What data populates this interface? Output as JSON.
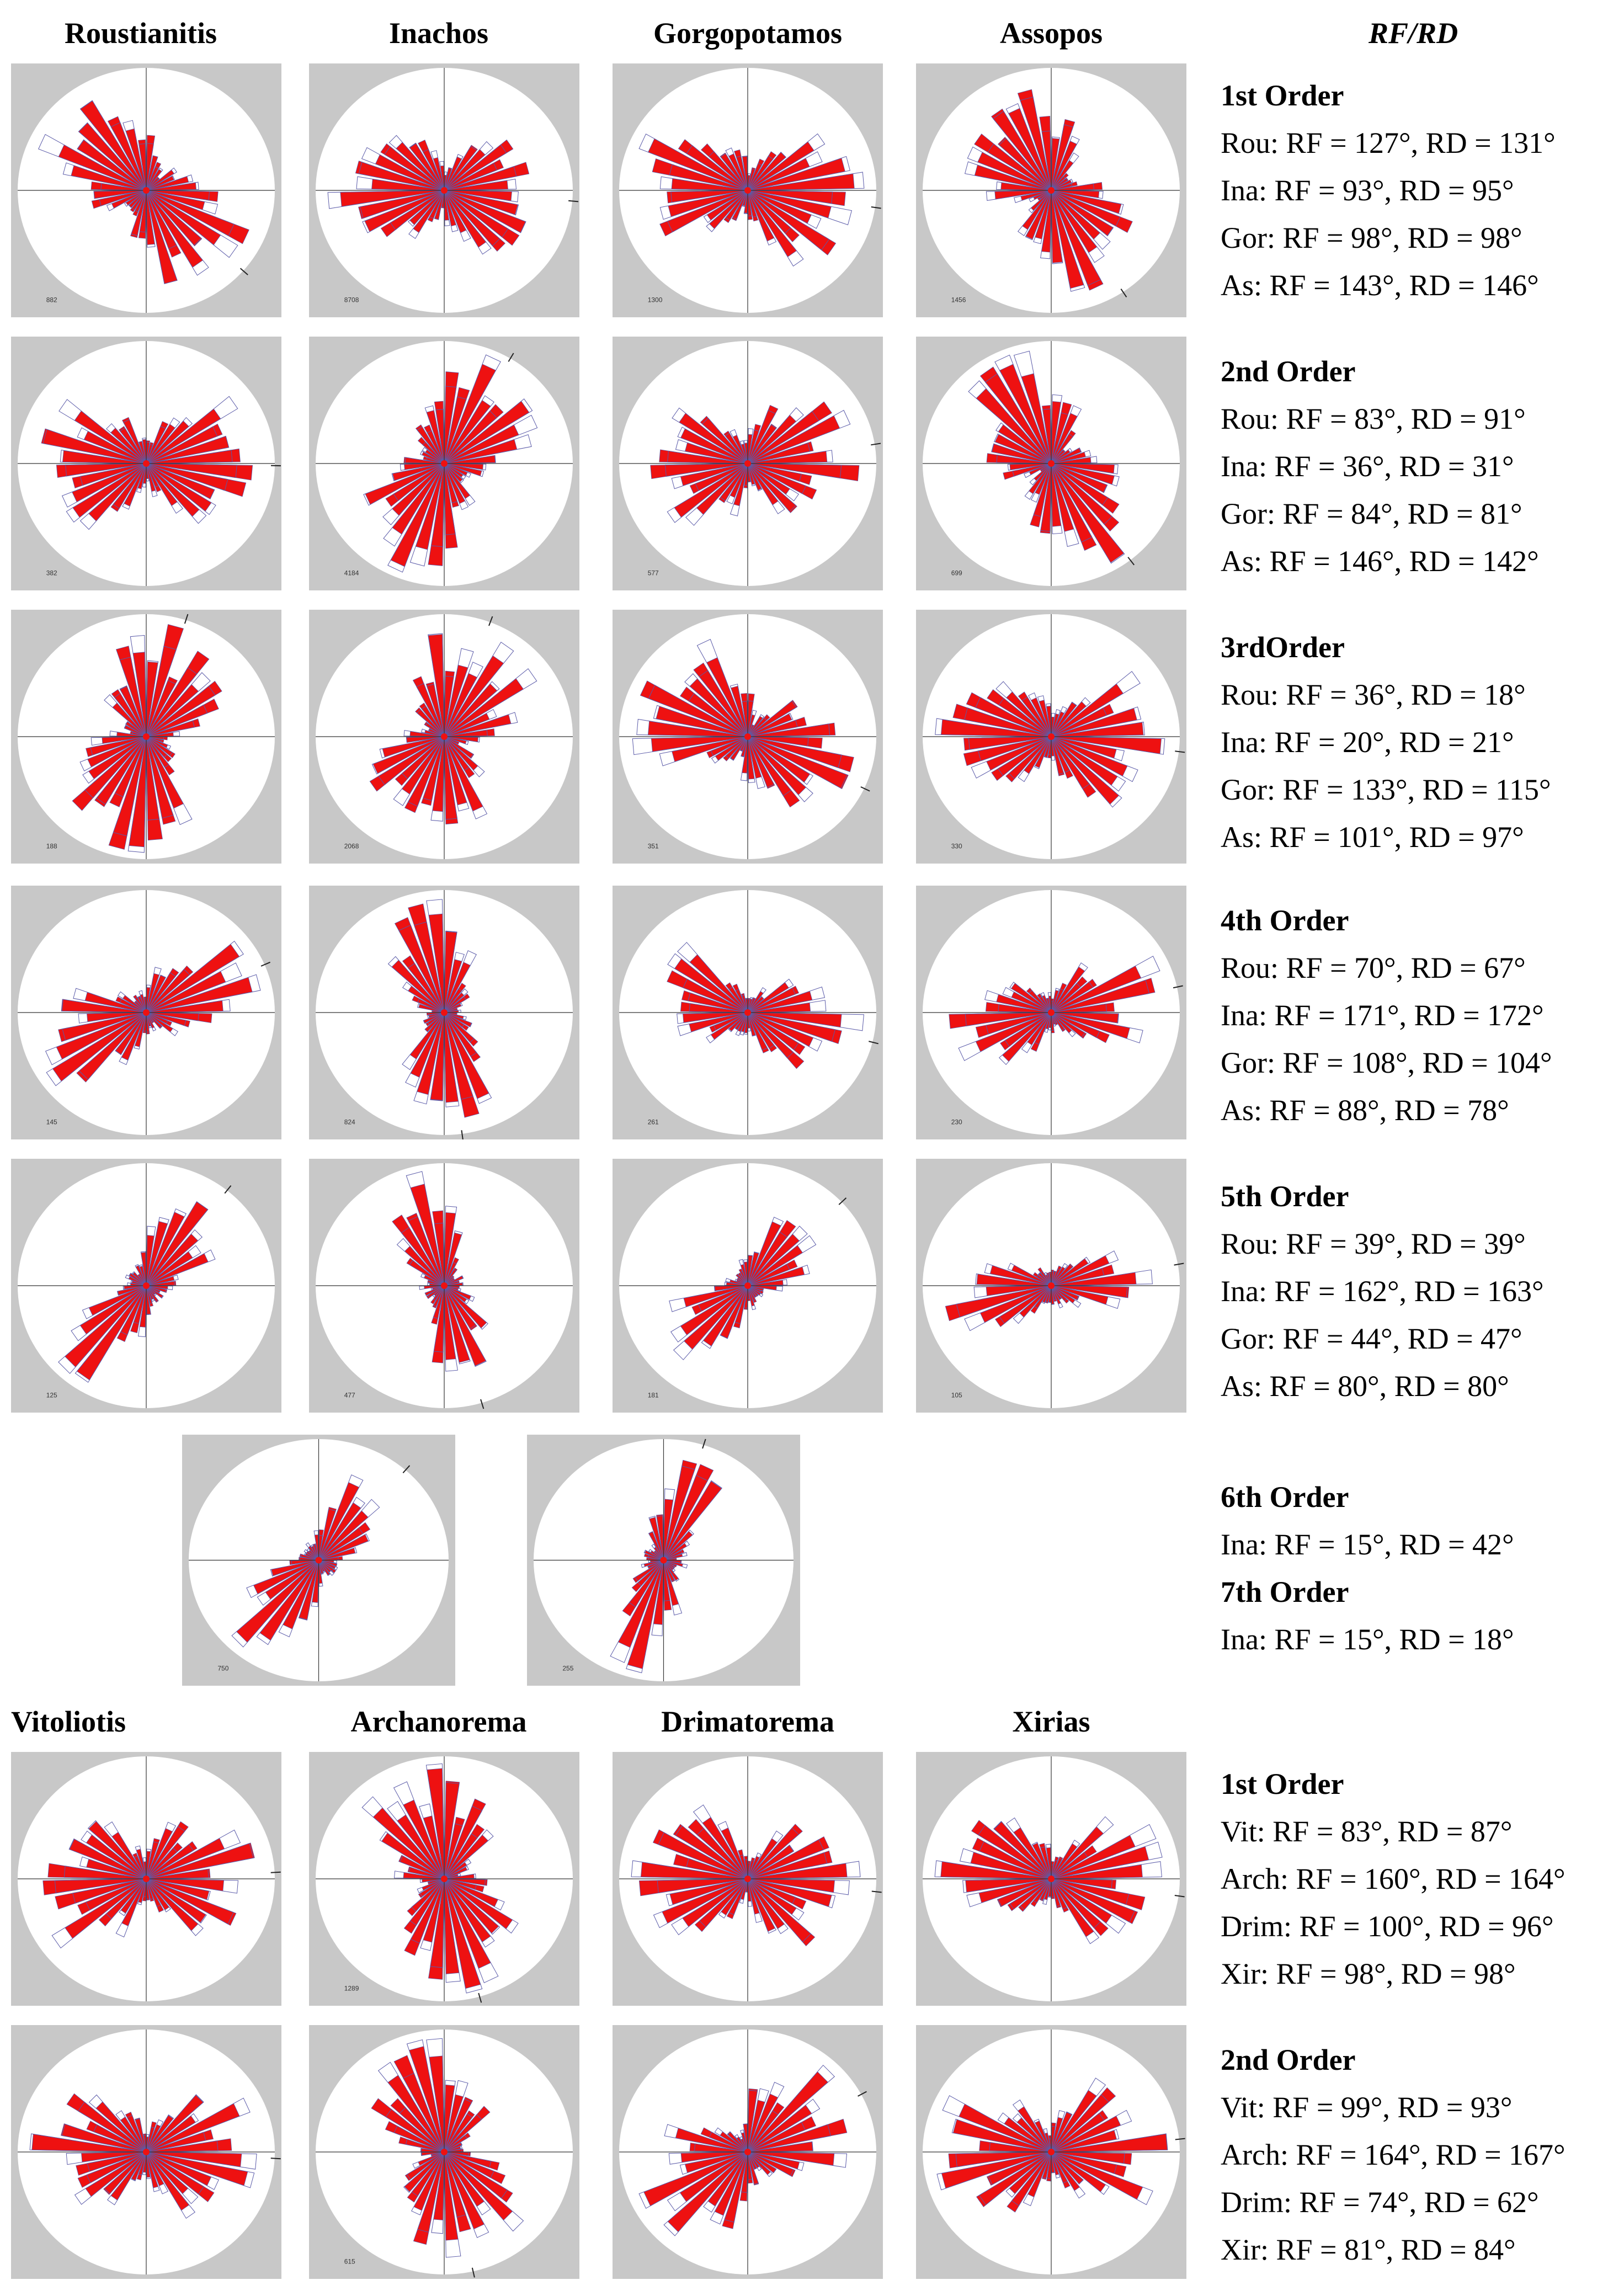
{
  "colors": {
    "bar": "#ee1111",
    "outline": "#5a5aa8",
    "panel_bg": "#c8c8c8",
    "circle": "#ffffff"
  },
  "headers_top": [
    "Roustianitis",
    "Inachos",
    "Gorgopotamos",
    "Assopos"
  ],
  "headers_bottom": [
    "Vitoliotis",
    "Archanorema",
    "Drimatorema",
    "Xirias"
  ],
  "rf_rd_header": {
    "rf": "RF",
    "sep": "/",
    "rd": "RD"
  },
  "blocks": [
    {
      "order": "1st Order",
      "lines": [
        "Rou: RF = 127°, RD = 131°",
        "Ina: RF = 93°, RD = 95°",
        "Gor: RF = 98°, RD = 98°",
        "As: RF = 143°, RD = 146°"
      ]
    },
    {
      "order": "2nd Order",
      "lines": [
        "Rou: RF = 83°, RD = 91°",
        "Ina: RF = 36°, RD = 31°",
        "Gor: RF = 84°, RD = 81°",
        "As: RF = 146°, RD = 142°"
      ]
    },
    {
      "order": "3rdOrder",
      "lines": [
        "Rou: RF = 36°, RD = 18°",
        "Ina: RF = 20°, RD = 21°",
        "Gor: RF = 133°, RD = 115°",
        "As: RF = 101°, RD = 97°"
      ]
    },
    {
      "order": "4th Order",
      "lines": [
        "Rou: RF = 70°, RD = 67°",
        "Ina: RF = 171°, RD = 172°",
        "Gor: RF = 108°, RD = 104°",
        "As: RF = 88°, RD = 78°"
      ]
    },
    {
      "order": "5th Order",
      "lines": [
        "Rou: RF = 39°, RD = 39°",
        "Ina: RF = 162°, RD = 163°",
        "Gor: RF = 44°, RD = 47°",
        "As: RF = 80°, RD = 80°"
      ]
    },
    {
      "order": "6th Order",
      "lines": [
        "Ina: RF = 15°, RD = 42°"
      ]
    },
    {
      "order": "7th Order",
      "lines": [
        "Ina: RF = 15°, RD = 18°"
      ]
    },
    {
      "order": "1st Order",
      "lines": [
        "Vit: RF = 83°, RD = 87°",
        "Arch: RF = 160°, RD = 164°",
        "Drim: RF = 100°, RD = 96°",
        "Xir: RF = 98°, RD = 98°"
      ]
    },
    {
      "order": "2nd Order",
      "lines": [
        "Vit: RF = 99°, RD = 93°",
        "Arch: RF = 164°, RD = 167°",
        "Drim: RF = 74°, RD = 62°",
        "Xir: RF = 81°, RD = 84°"
      ]
    }
  ],
  "chart_data": [
    {
      "type": "rose",
      "basin": "Roustianitis",
      "order": "1st Order",
      "rf": 127,
      "rd": 131,
      "count_label": "882"
    },
    {
      "type": "rose",
      "basin": "Inachos",
      "order": "1st Order",
      "rf": 93,
      "rd": 95,
      "count_label": "8708"
    },
    {
      "type": "rose",
      "basin": "Gorgopotamos",
      "order": "1st Order",
      "rf": 98,
      "rd": 98,
      "count_label": "1300"
    },
    {
      "type": "rose",
      "basin": "Assopos",
      "order": "1st Order",
      "rf": 143,
      "rd": 146,
      "count_label": "1456"
    },
    {
      "type": "rose",
      "basin": "Roustianitis",
      "order": "2nd Order",
      "rf": 83,
      "rd": 91,
      "count_label": "382"
    },
    {
      "type": "rose",
      "basin": "Inachos",
      "order": "2nd Order",
      "rf": 36,
      "rd": 31,
      "count_label": "4184"
    },
    {
      "type": "rose",
      "basin": "Gorgopotamos",
      "order": "2nd Order",
      "rf": 84,
      "rd": 81,
      "count_label": "577"
    },
    {
      "type": "rose",
      "basin": "Assopos",
      "order": "2nd Order",
      "rf": 146,
      "rd": 142,
      "count_label": "699"
    },
    {
      "type": "rose",
      "basin": "Roustianitis",
      "order": "3rdOrder",
      "rf": 36,
      "rd": 18,
      "count_label": "188"
    },
    {
      "type": "rose",
      "basin": "Inachos",
      "order": "3rdOrder",
      "rf": 20,
      "rd": 21,
      "count_label": "2068"
    },
    {
      "type": "rose",
      "basin": "Gorgopotamos",
      "order": "3rdOrder",
      "rf": 133,
      "rd": 115,
      "count_label": "351"
    },
    {
      "type": "rose",
      "basin": "Assopos",
      "order": "3rdOrder",
      "rf": 101,
      "rd": 97,
      "count_label": "330"
    },
    {
      "type": "rose",
      "basin": "Roustianitis",
      "order": "4th Order",
      "rf": 70,
      "rd": 67,
      "count_label": "145"
    },
    {
      "type": "rose",
      "basin": "Inachos",
      "order": "4th Order",
      "rf": 171,
      "rd": 172,
      "count_label": "824"
    },
    {
      "type": "rose",
      "basin": "Gorgopotamos",
      "order": "4th Order",
      "rf": 108,
      "rd": 104,
      "count_label": "261"
    },
    {
      "type": "rose",
      "basin": "Assopos",
      "order": "4th Order",
      "rf": 88,
      "rd": 78,
      "count_label": "230"
    },
    {
      "type": "rose",
      "basin": "Roustianitis",
      "order": "5th Order",
      "rf": 39,
      "rd": 39,
      "count_label": "125"
    },
    {
      "type": "rose",
      "basin": "Inachos",
      "order": "5th Order",
      "rf": 162,
      "rd": 163,
      "count_label": "477"
    },
    {
      "type": "rose",
      "basin": "Gorgopotamos",
      "order": "5th Order",
      "rf": 44,
      "rd": 47,
      "count_label": "181"
    },
    {
      "type": "rose",
      "basin": "Assopos",
      "order": "5th Order",
      "rf": 80,
      "rd": 80,
      "count_label": "105"
    },
    {
      "type": "rose",
      "basin": "Inachos",
      "order": "6th Order",
      "rf": 15,
      "rd": 42,
      "count_label": "750"
    },
    {
      "type": "rose",
      "basin": "Inachos",
      "order": "7th Order",
      "rf": 15,
      "rd": 18,
      "count_label": "255"
    },
    {
      "type": "rose",
      "basin": "Vitoliotis",
      "order": "1st Order",
      "rf": 83,
      "rd": 87,
      "count_label": ""
    },
    {
      "type": "rose",
      "basin": "Archanorema",
      "order": "1st Order",
      "rf": 160,
      "rd": 164,
      "count_label": "1289"
    },
    {
      "type": "rose",
      "basin": "Drimatorema",
      "order": "1st Order",
      "rf": 100,
      "rd": 96,
      "count_label": ""
    },
    {
      "type": "rose",
      "basin": "Xirias",
      "order": "1st Order",
      "rf": 98,
      "rd": 98,
      "count_label": ""
    },
    {
      "type": "rose",
      "basin": "Vitoliotis",
      "order": "2nd Order",
      "rf": 99,
      "rd": 93,
      "count_label": ""
    },
    {
      "type": "rose",
      "basin": "Archanorema",
      "order": "2nd Order",
      "rf": 164,
      "rd": 167,
      "count_label": "615"
    },
    {
      "type": "rose",
      "basin": "Drimatorema",
      "order": "2nd Order",
      "rf": 74,
      "rd": 62,
      "count_label": ""
    },
    {
      "type": "rose",
      "basin": "Xirias",
      "order": "2nd Order",
      "rf": 81,
      "rd": 84,
      "count_label": ""
    }
  ]
}
